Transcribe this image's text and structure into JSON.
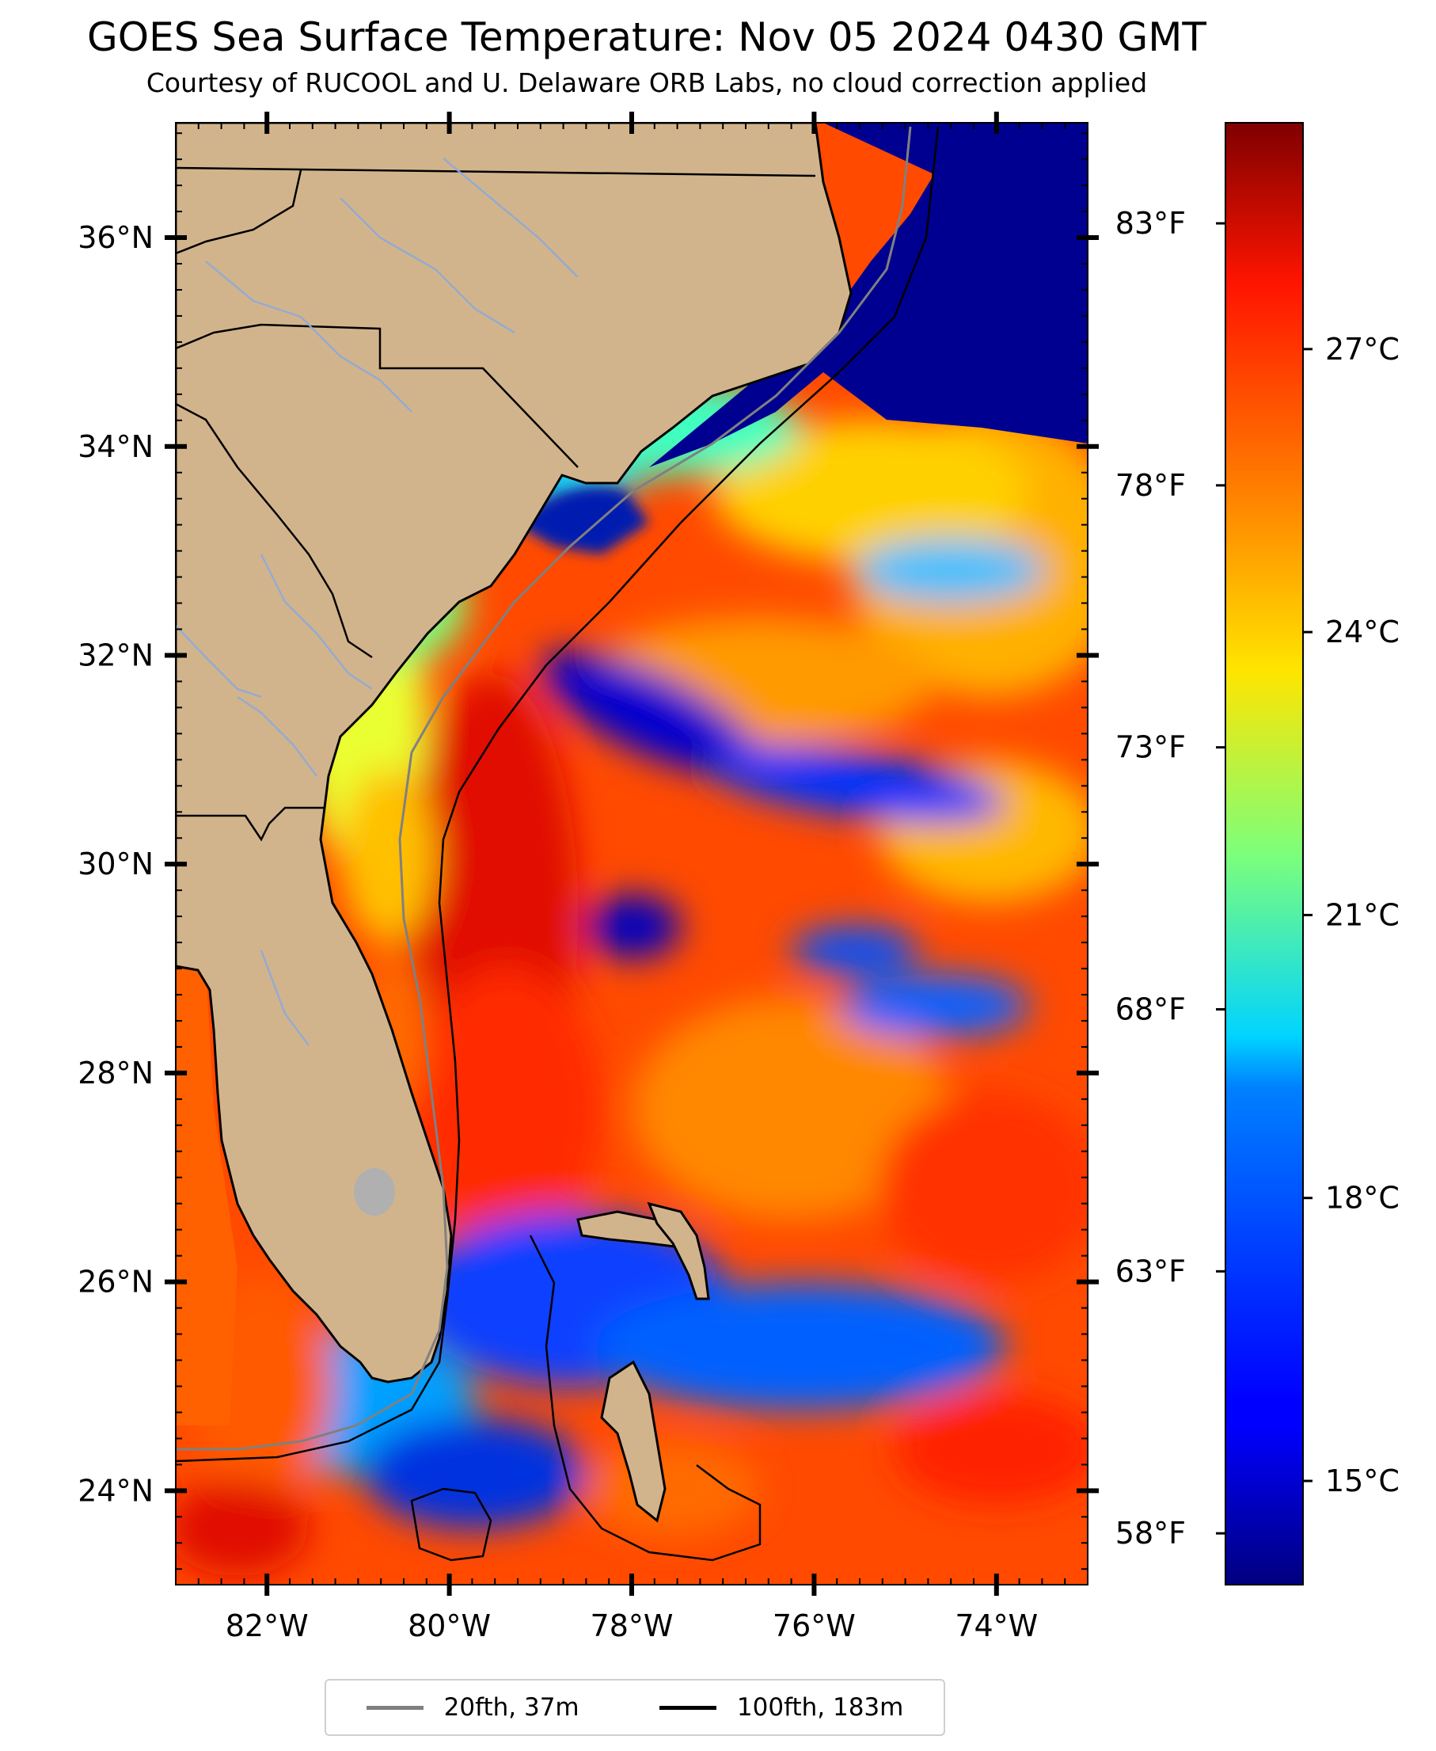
{
  "title": "GOES Sea Surface Temperature: Nov 05 2024 0430 GMT",
  "subtitle": "Courtesy of RUCOOL and U. Delaware ORB Labs, no cloud correction applied",
  "map": {
    "lon_range": [
      -83,
      -73
    ],
    "lat_range": [
      23.1,
      37.1
    ],
    "lon_ticks": [
      {
        "value": -82,
        "label": "82°W"
      },
      {
        "value": -80,
        "label": "80°W"
      },
      {
        "value": -78,
        "label": "78°W"
      },
      {
        "value": -76,
        "label": "76°W"
      },
      {
        "value": -74,
        "label": "74°W"
      }
    ],
    "lat_ticks": [
      {
        "value": 24,
        "label": "24°N"
      },
      {
        "value": 26,
        "label": "26°N"
      },
      {
        "value": 28,
        "label": "28°N"
      },
      {
        "value": 30,
        "label": "30°N"
      },
      {
        "value": 32,
        "label": "32°N"
      },
      {
        "value": 34,
        "label": "34°N"
      },
      {
        "value": 36,
        "label": "36°N"
      }
    ],
    "land_color": "#D2B48C",
    "coastline_color": "#000000"
  },
  "colorbar": {
    "celsius_range": [
      13.9,
      29.4
    ],
    "celsius_ticks": [
      {
        "value": 15,
        "label": "15°C"
      },
      {
        "value": 18,
        "label": "18°C"
      },
      {
        "value": 21,
        "label": "21°C"
      },
      {
        "value": 24,
        "label": "24°C"
      },
      {
        "value": 27,
        "label": "27°C"
      }
    ],
    "fahrenheit_ticks": [
      {
        "value": 58,
        "label": "58°F"
      },
      {
        "value": 63,
        "label": "63°F"
      },
      {
        "value": 68,
        "label": "68°F"
      },
      {
        "value": 73,
        "label": "73°F"
      },
      {
        "value": 78,
        "label": "78°F"
      },
      {
        "value": 83,
        "label": "83°F"
      }
    ],
    "colormap": "jet"
  },
  "legend": {
    "items": [
      {
        "label": "20fth, 37m",
        "color": "#808080"
      },
      {
        "label": "100fth, 183m",
        "color": "#000000"
      }
    ]
  }
}
